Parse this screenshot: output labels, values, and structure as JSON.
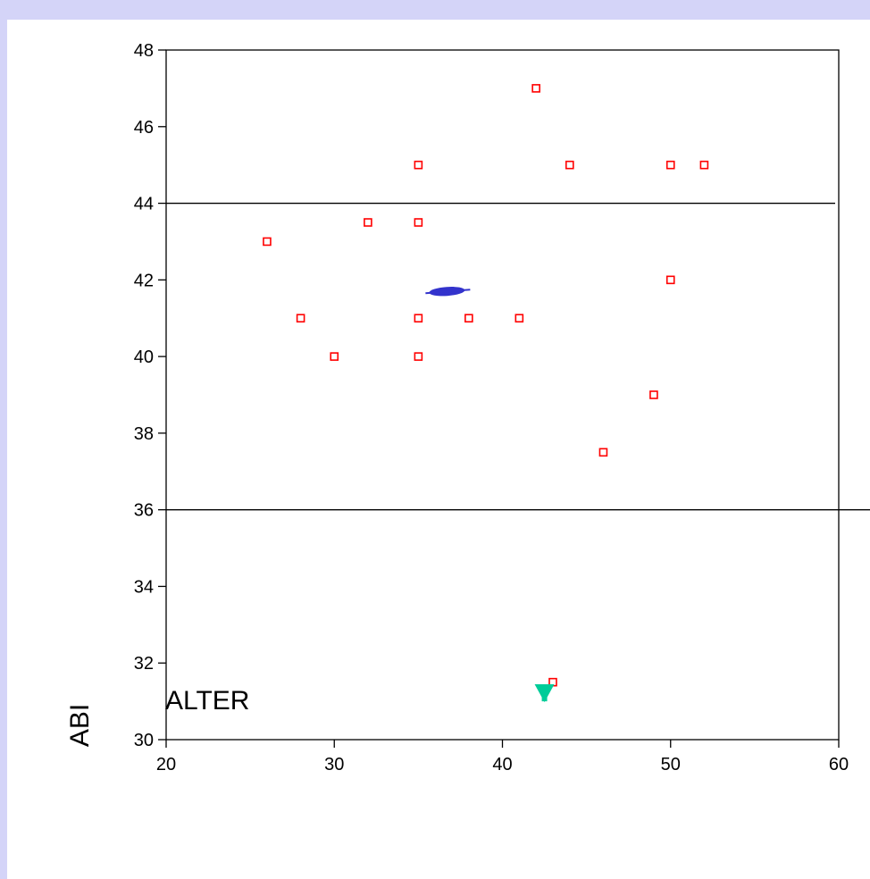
{
  "chart_data": {
    "type": "scatter",
    "title": "",
    "xlabel": "ALTER",
    "ylabel": "ABI",
    "xlim": [
      20,
      60
    ],
    "ylim": [
      30,
      48
    ],
    "x_ticks": [
      "20",
      "30",
      "40",
      "50",
      "60"
    ],
    "y_ticks": [
      "30",
      "32",
      "34",
      "36",
      "38",
      "40",
      "42",
      "44",
      "46",
      "48"
    ],
    "grid": false,
    "series": [
      {
        "marker": "hollow-square",
        "color": "#ff0000",
        "points": [
          {
            "x": 26,
            "y": 43
          },
          {
            "x": 28,
            "y": 41
          },
          {
            "x": 30,
            "y": 40
          },
          {
            "x": 32,
            "y": 43.5
          },
          {
            "x": 35,
            "y": 45
          },
          {
            "x": 35,
            "y": 43.5
          },
          {
            "x": 35,
            "y": 41
          },
          {
            "x": 35,
            "y": 40
          },
          {
            "x": 38,
            "y": 41
          },
          {
            "x": 41,
            "y": 41
          },
          {
            "x": 42,
            "y": 47
          },
          {
            "x": 43,
            "y": 31.5
          },
          {
            "x": 44,
            "y": 45
          },
          {
            "x": 46,
            "y": 37.5
          },
          {
            "x": 49,
            "y": 39
          },
          {
            "x": 50,
            "y": 45
          },
          {
            "x": 50,
            "y": 42
          },
          {
            "x": 52,
            "y": 45
          }
        ]
      }
    ],
    "reference_lines_y": [
      44,
      36
    ],
    "centroid": {
      "x": 36.7,
      "y": 41.7,
      "color": "#3333cc"
    },
    "arrow": {
      "x": 42.5,
      "y_from": 31,
      "direction": "down",
      "color": "#00cc99"
    }
  }
}
